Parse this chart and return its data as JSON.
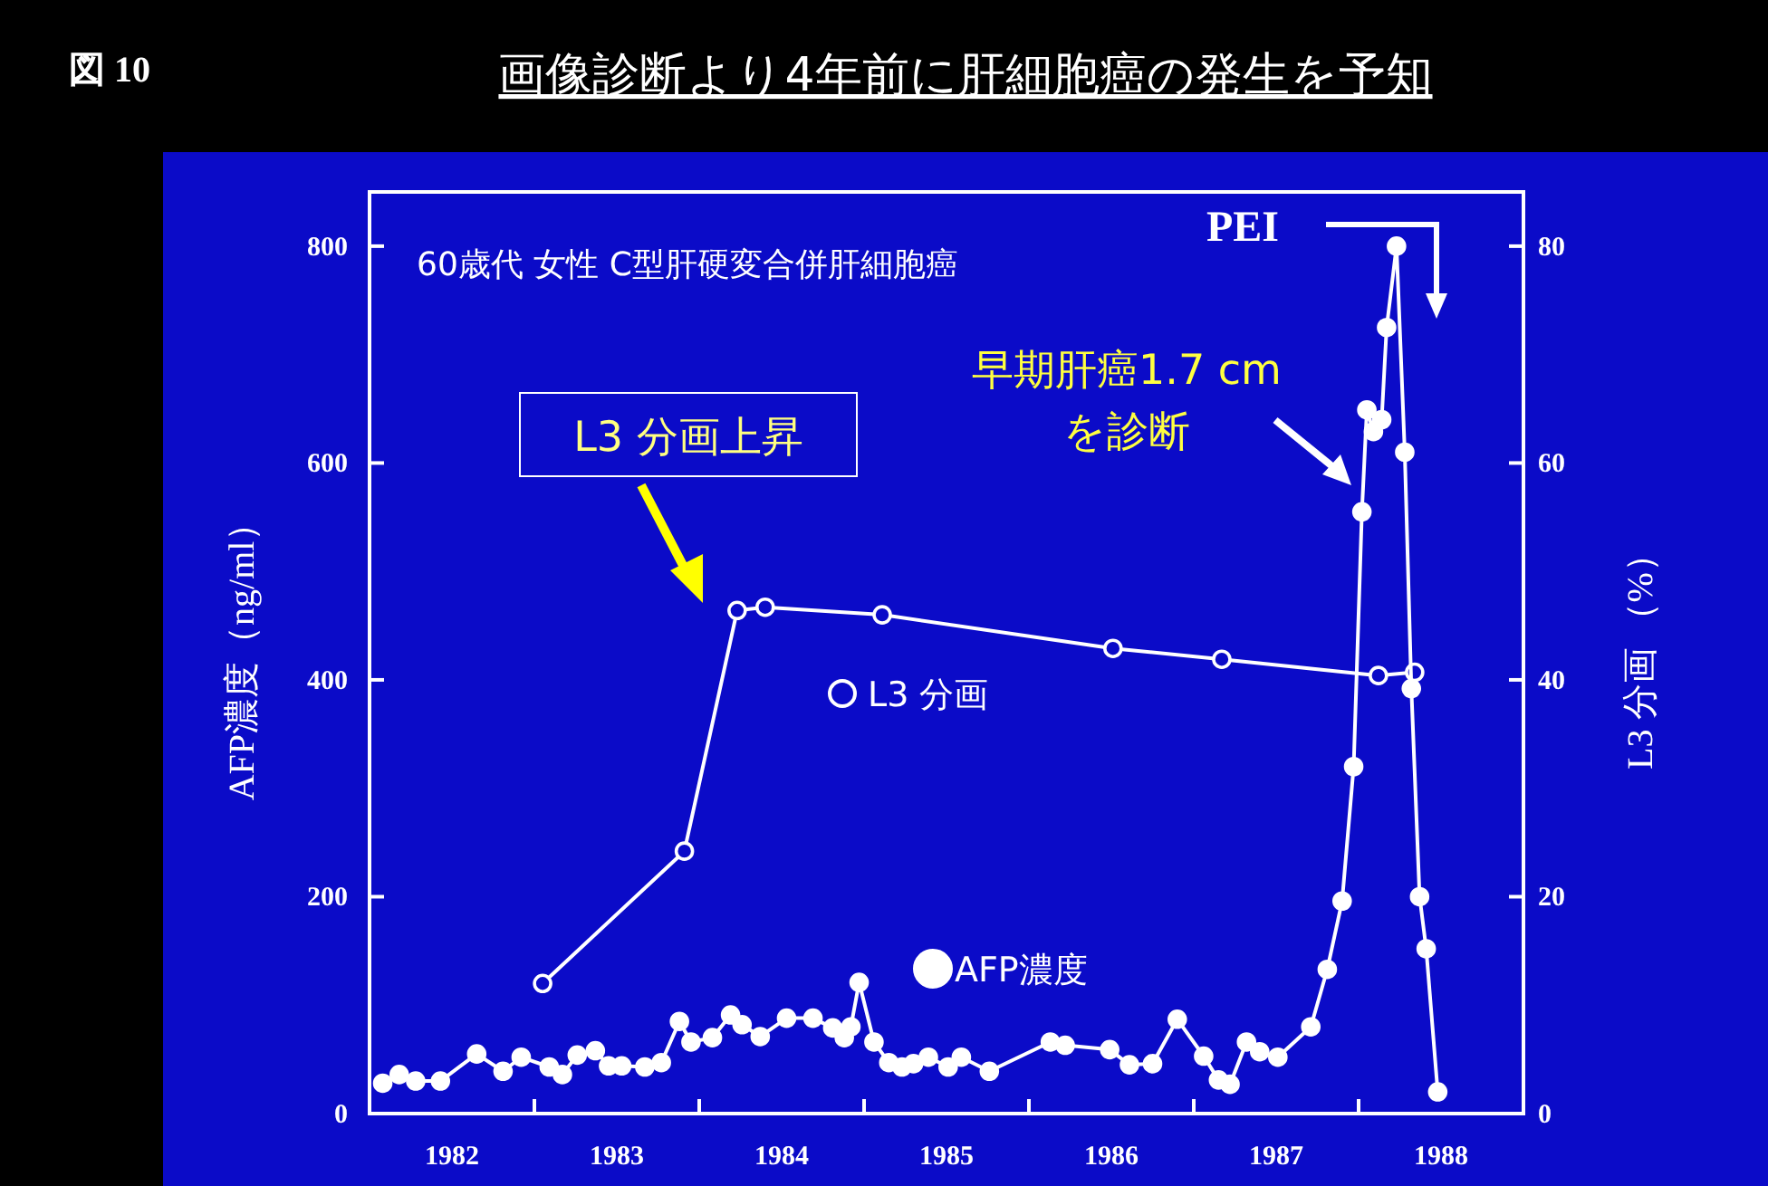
{
  "chart_data": {
    "type": "line",
    "title": "画像診断より4年前に肝細胞癌の発生を予知",
    "ylabel": "AFP濃度（ng/ml）",
    "y2label": "L3 分画 （%）",
    "annotations": [
      "図 10",
      "60歳代 女性 C型肝硬変合併肝細胞癌",
      "L3 分画上昇",
      "早期肝癌1.7 cm\nを診断",
      "PEI"
    ],
    "xlim": [
      1982,
      1989
    ],
    "xticks": [
      {
        "value": 1982.5,
        "label": "1982"
      },
      {
        "value": 1983,
        "label": null
      },
      {
        "value": 1983.5,
        "label": "1983"
      },
      {
        "value": 1984,
        "label": null
      },
      {
        "value": 1984.5,
        "label": "1984"
      },
      {
        "value": 1985,
        "label": null
      },
      {
        "value": 1985.5,
        "label": "1985"
      },
      {
        "value": 1986,
        "label": null
      },
      {
        "value": 1986.5,
        "label": "1986"
      },
      {
        "value": 1987,
        "label": null
      },
      {
        "value": 1987.5,
        "label": "1987"
      },
      {
        "value": 1988,
        "label": null
      },
      {
        "value": 1988.5,
        "label": "1988"
      }
    ],
    "ylim": [
      0,
      850
    ],
    "yticks": [
      0,
      200,
      400,
      600,
      800
    ],
    "y2lim": [
      0,
      85
    ],
    "y2ticks": [
      0,
      20,
      40,
      60,
      80
    ],
    "marker": "circle",
    "line_style": "solid",
    "grid": false,
    "legend": "center",
    "series": [
      {
        "name": "L3 分画",
        "color": "#ffffff",
        "axis": "y2",
        "x": [
          1983.05,
          1983.91,
          1984.23,
          1984.4,
          1985.11,
          1986.51,
          1987.17,
          1988.12,
          1988.34
        ],
        "values": [
          12.0,
          24.2,
          46.4,
          46.7,
          46.0,
          42.9,
          41.9,
          40.4,
          40.7
        ]
      },
      {
        "name": "AFP濃度",
        "color": "#ffffff",
        "axis": "y",
        "x": [
          1982.08,
          1982.18,
          1982.28,
          1982.43,
          1982.65,
          1982.81,
          1982.92,
          1983.09,
          1983.17,
          1983.26,
          1983.37,
          1983.45,
          1983.53,
          1983.67,
          1983.77,
          1983.88,
          1983.95,
          1984.08,
          1984.19,
          1984.26,
          1984.37,
          1984.53,
          1984.69,
          1984.81,
          1984.88,
          1984.92,
          1984.97,
          1985.06,
          1985.15,
          1985.23,
          1985.3,
          1985.39,
          1985.51,
          1985.59,
          1985.76,
          1986.13,
          1986.22,
          1986.49,
          1986.61,
          1986.75,
          1986.9,
          1987.06,
          1987.15,
          1987.22,
          1987.32,
          1987.4,
          1987.51,
          1987.71,
          1987.81,
          1987.9,
          1987.97,
          1988.02,
          1988.05,
          1988.09,
          1988.14,
          1988.17,
          1988.23,
          1988.28,
          1988.32,
          1988.37,
          1988.41,
          1988.48
        ],
        "values": [
          28,
          36,
          30,
          30,
          55,
          39,
          52,
          43,
          36,
          54,
          58,
          44,
          44,
          43,
          47,
          85,
          66,
          70,
          91,
          82,
          71,
          88,
          88,
          79,
          70,
          80,
          121,
          66,
          47,
          43,
          46,
          52,
          43,
          52,
          39,
          66,
          63,
          59,
          45,
          46,
          87,
          53,
          31,
          27,
          66,
          57,
          52,
          80,
          133,
          196,
          320,
          555,
          649,
          629,
          640,
          725,
          800,
          610,
          392,
          200,
          152,
          20
        ]
      }
    ]
  }
}
